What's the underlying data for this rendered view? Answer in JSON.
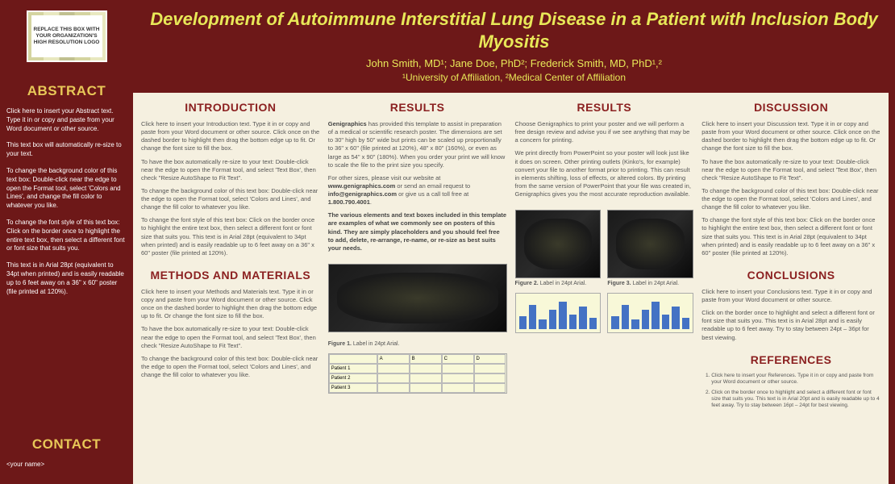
{
  "logo_placeholder": "REPLACE THIS BOX WITH YOUR ORGANIZATION'S HIGH RESOLUTION LOGO",
  "title": "Development of Autoimmune Interstitial Lung Disease in a Patient with Inclusion Body Myositis",
  "authors": "John Smith, MD¹; Jane Doe, PhD²; Frederick Smith, MD, PhD¹,²",
  "affiliations": "¹University of Affiliation, ²Medical Center of Affiliation",
  "sidebar": {
    "abstract_heading": "ABSTRACT",
    "abstract_p1": "Click here to insert your Abstract text. Type it in or copy and paste from your Word document or other source.",
    "abstract_p2": "This text box will automatically re-size to your text.",
    "abstract_p3": "To change the background color of this text box: Double-click near the edge to open the Format tool, select 'Colors and Lines', and change the fill color to whatever you like.",
    "abstract_p4": "To change the font style of this text box: Click on the border once to highlight the entire text box, then select a different font or font size that suits you.",
    "abstract_p5": "This text is in Arial 28pt (equivalent to 34pt when printed) and is easily readable up to 6 feet away on a 36\" x 60\" poster (file printed at 120%).",
    "contact_heading": "CONTACT",
    "contact_name": "<your name>"
  },
  "intro": {
    "heading": "INTRODUCTION",
    "p1": "Click here to insert your Introduction text. Type it in or copy and paste from your Word document or other source. Click once on the dashed border to highlight then drag the bottom edge up to fit. Or change the font size to fill the box.",
    "p2": "To have the box automatically re-size to your text: Double-click near the edge to open the Format tool, and select 'Text Box', then check \"Resize AutoShape to Fit Text\".",
    "p3": "To change the background color of this text box: Double-click near the edge to open the Format tool, select 'Colors and Lines', and change the fill color to whatever you like.",
    "p4": "To change the font style of this text box: Click on the border once to highlight the entire text box, then select a different font or font size that suits you. This text is in Arial 28pt (equivalent to 34pt when printed) and is easily readable up to 6 feet away on a 36\" x 60\" poster (file printed at 120%)."
  },
  "methods": {
    "heading": "METHODS AND MATERIALS",
    "p1": "Click here to insert your Methods and Materials text. Type it in or copy and paste from your Word document or other source. Click once on the dashed border to highlight then drag the bottom edge up to fit. Or change the font size to fill the box.",
    "p2": "To have the box automatically re-size to your text: Double-click near the edge to open the Format tool, and select 'Text Box', then check \"Resize AutoShape to Fit Text\".",
    "p3": "To change the background color of this text box: Double-click near the edge to open the Format tool, select 'Colors and Lines', and change the fill color to whatever you like."
  },
  "results1": {
    "heading": "RESULTS",
    "p1_a": "Genigraphics",
    "p1_b": " has provided this template to assist in preparation of a medical or scientific research poster. The dimensions are set to 30\" high by 50\" wide but prints can be scaled up proportionally to 36\" x 60\" (file printed at 120%), 48\" x 80\" (160%), or even as large as 54\" x 90\" (180%). When you order your print we will know to scale the file to the print size you specify.",
    "p2_a": "For other sizes, please visit our website at ",
    "p2_b": "www.genigraphics.com",
    "p2_c": " or send an email request to ",
    "p2_d": "info@genigraphics.com",
    "p2_e": " or give us a call toll free at ",
    "p2_f": "1.800.790.4001",
    "p3": "The various elements and text boxes included in this template are examples of what we commonly see on posters of this kind. They are simply placeholders and you should feel free to add, delete, re-arrange, re-name, or re-size as best suits your needs.",
    "fig1": "Figure 1.",
    "fig1_cap": " Label in 24pt Arial.",
    "tbl_headers": [
      "",
      "A",
      "B",
      "C",
      "D"
    ],
    "tbl_r1": "Patient 1",
    "tbl_r2": "Patient 2",
    "tbl_r3": "Patient 3"
  },
  "results2": {
    "heading": "RESULTS",
    "p1": "Choose Genigraphics to print your poster and we will perform a free design review and advise you if we see anything that may be a concern for printing.",
    "p2": "We print directly from PowerPoint so your poster will look just like it does on screen. Other printing outlets (Kinko's, for example) convert your file to another format prior to printing. This can result in elements shifting, loss of effects, or altered colors. By printing from the same version of PowerPoint that your file was created in, Genigraphics gives you the most accurate reproduction available.",
    "fig2": "Figure 2.",
    "fig2_cap": " Label in 24pt Arial.",
    "fig3": "Figure 3.",
    "fig3_cap": " Label in 24pt Arial."
  },
  "discussion": {
    "heading": "DISCUSSION",
    "p1": "Click here to insert your Discussion text. Type it in or copy and paste from your Word document or other source. Click once on the dashed border to highlight then drag the bottom edge up to fit. Or change the font size to fill the box.",
    "p2": "To have the box automatically re-size to your text: Double-click near the edge to open the Format tool, and select 'Text Box', then check \"Resize AutoShape to Fit Text\".",
    "p3": "To change the background color of this text box: Double-click near the edge to open the Format tool, select 'Colors and Lines', and change the fill color to whatever you like.",
    "p4": "To change the font style of this text box: Click on the border once to highlight the entire text box, then select a different font or font size that suits you. This text is in Arial 28pt (equivalent to 34pt when printed) and is easily readable up to 6 feet away on a 36\" x 60\" poster (file printed at 120%)."
  },
  "conclusions": {
    "heading": "CONCLUSIONS",
    "p1": "Click here to insert your Conclusions text. Type it in or copy and paste from your Word document or other source.",
    "p2": "Click on the border once to highlight and select a different font or font size that suits you. This text is in Arial 28pt and is easily readable up to 6 feet away. Try to stay between 24pt – 36pt for best viewing."
  },
  "references": {
    "heading": "REFERENCES",
    "r1": "Click here to insert your References. Type it in or copy and paste from your Word document or other source.",
    "r2": "Click on the border once to highlight and select a different font or font size that suits you. This text is in Arial 20pt and is easily readable up to 4 feet away. Try to stay between 16pt – 24pt for best viewing."
  },
  "chart": {
    "bars": [
      40,
      75,
      30,
      60,
      85,
      45,
      70,
      35
    ]
  }
}
